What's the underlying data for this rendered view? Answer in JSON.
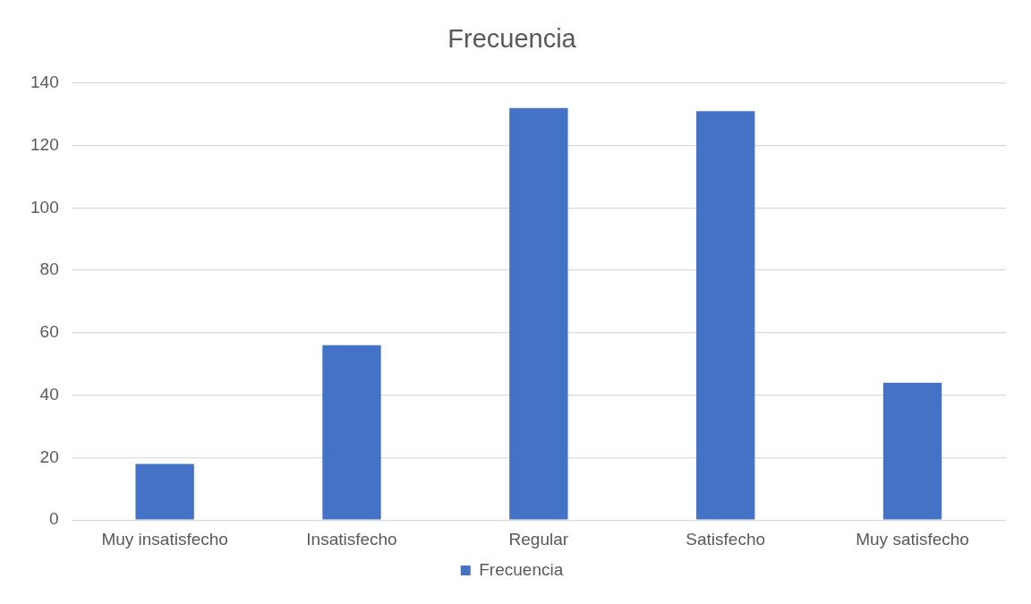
{
  "chart_data": {
    "type": "bar",
    "title": "Frecuencia",
    "categories": [
      "Muy insatisfecho",
      "Insatisfecho",
      "Regular",
      "Satisfecho",
      "Muy satisfecho"
    ],
    "series": [
      {
        "name": "Frecuencia",
        "color": "#4472c4",
        "values": [
          18,
          56,
          132,
          131,
          44
        ]
      }
    ],
    "ylim": [
      0,
      140
    ],
    "yticks": [
      0,
      20,
      40,
      60,
      80,
      100,
      120,
      140
    ],
    "grid": "y",
    "legend": "bottom"
  }
}
